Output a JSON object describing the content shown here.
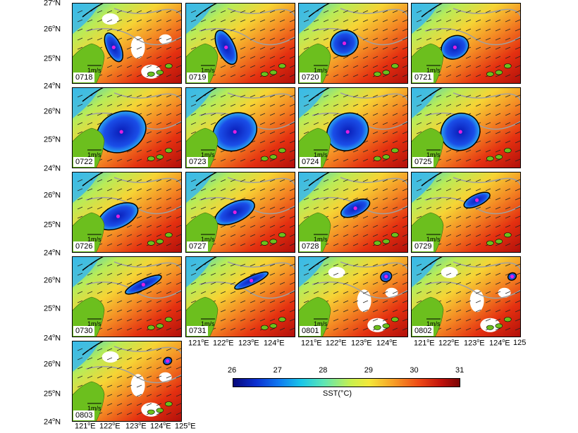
{
  "panels": [
    {
      "id": "0718",
      "row": 0,
      "col": 0
    },
    {
      "id": "0719",
      "row": 0,
      "col": 1
    },
    {
      "id": "0720",
      "row": 0,
      "col": 2
    },
    {
      "id": "0721",
      "row": 0,
      "col": 3
    },
    {
      "id": "0722",
      "row": 1,
      "col": 0
    },
    {
      "id": "0723",
      "row": 1,
      "col": 1
    },
    {
      "id": "0724",
      "row": 1,
      "col": 2
    },
    {
      "id": "0725",
      "row": 1,
      "col": 3
    },
    {
      "id": "0726",
      "row": 2,
      "col": 0
    },
    {
      "id": "0727",
      "row": 2,
      "col": 1
    },
    {
      "id": "0728",
      "row": 2,
      "col": 2
    },
    {
      "id": "0729",
      "row": 2,
      "col": 3
    },
    {
      "id": "0730",
      "row": 3,
      "col": 0
    },
    {
      "id": "0731",
      "row": 3,
      "col": 1
    },
    {
      "id": "0801",
      "row": 3,
      "col": 2
    },
    {
      "id": "0802",
      "row": 3,
      "col": 3
    },
    {
      "id": "0803",
      "row": 4,
      "col": 0
    }
  ],
  "scale_label": "1m/s",
  "lat_labels": {
    "row0": [
      "27",
      "26",
      "25",
      "24"
    ],
    "row1": [
      "26",
      "25",
      "24"
    ],
    "row2": [
      "26",
      "25",
      "24"
    ],
    "row3": [
      "26",
      "25",
      "24"
    ],
    "row4": [
      "26",
      "25",
      "24"
    ]
  },
  "lat_suffix": "N",
  "lon_labels": {
    "col0": [
      "121",
      "122",
      "123",
      "124",
      "125"
    ],
    "col1": [
      "121",
      "122",
      "123",
      "124"
    ],
    "col2": [
      "121",
      "122",
      "123",
      "124"
    ],
    "col3": [
      "121",
      "122",
      "123",
      "124",
      "125"
    ]
  },
  "lon_suffix": "E",
  "degree_symbol": "o",
  "colorbar": {
    "title": "SST(°C)",
    "ticks": [
      "26",
      "27",
      "28",
      "29",
      "30",
      "31"
    ],
    "range": [
      26,
      31
    ],
    "colors": [
      "#08087a",
      "#0b2fd0",
      "#0f78f0",
      "#19c6e8",
      "#5ee6b4",
      "#c8f04e",
      "#f4e83a",
      "#f7a428",
      "#ee4a16",
      "#c0120c",
      "#7a0505"
    ]
  },
  "colors": {
    "land": "#6cbf1e",
    "eddy_core": "#1430c8",
    "eddy_center_marker": "#e020e0",
    "contour_gray": "#a0a0a0",
    "contour_black": "#000000"
  }
}
